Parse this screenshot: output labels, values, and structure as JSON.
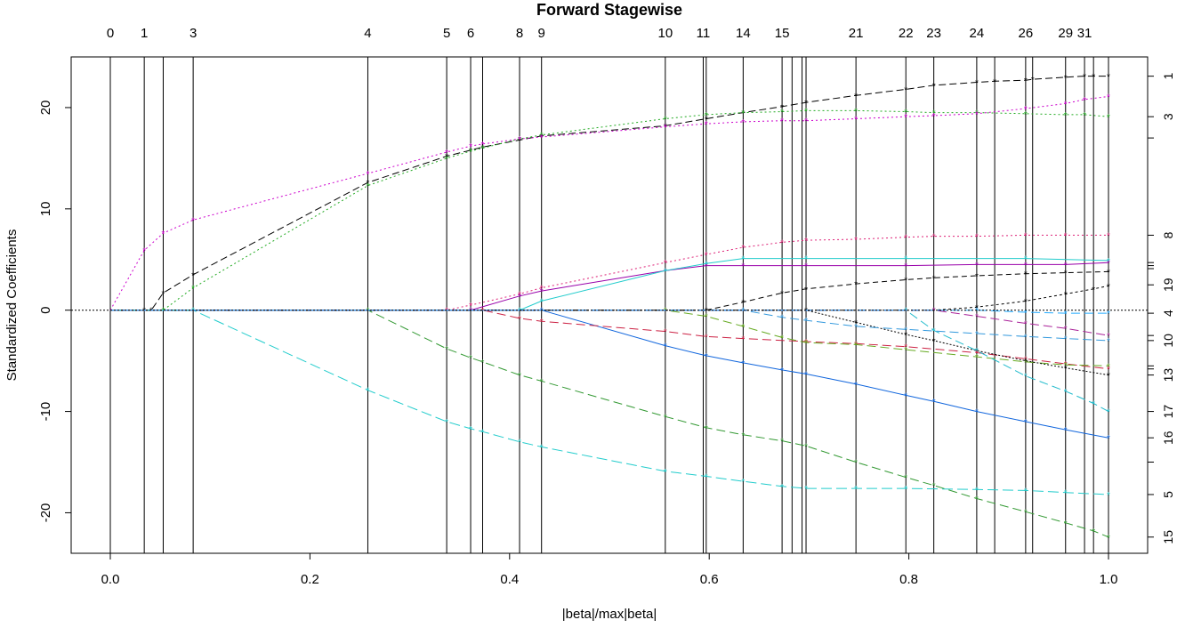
{
  "chart_data": {
    "type": "line",
    "title": "Forward Stagewise",
    "xlabel": "|beta|/max|beta|",
    "ylabel": "Standardized Coefficients",
    "xlim": [
      0.0,
      1.0
    ],
    "ylim": [
      -24,
      25
    ],
    "x_ticks": [
      0.0,
      0.2,
      0.4,
      0.6,
      0.8,
      1.0
    ],
    "x_tick_labels": [
      "0.0",
      "0.2",
      "0.4",
      "0.6",
      "0.8",
      "1.0"
    ],
    "y_ticks": [
      -20,
      -10,
      0,
      10,
      20
    ],
    "y_tick_labels": [
      "-20",
      "-10",
      "0",
      "10",
      "20"
    ],
    "grid": false,
    "legend": "none",
    "step_lines": [
      {
        "x": 0.0,
        "label": "0"
      },
      {
        "x": 0.034,
        "label": "1"
      },
      {
        "x": 0.053,
        "label": ""
      },
      {
        "x": 0.083,
        "label": "3"
      },
      {
        "x": 0.258,
        "label": "4"
      },
      {
        "x": 0.337,
        "label": "5"
      },
      {
        "x": 0.361,
        "label": "6"
      },
      {
        "x": 0.373,
        "label": ""
      },
      {
        "x": 0.41,
        "label": "8"
      },
      {
        "x": 0.432,
        "label": "9"
      },
      {
        "x": 0.556,
        "label": "10"
      },
      {
        "x": 0.594,
        "label": "11"
      },
      {
        "x": 0.597,
        "label": ""
      },
      {
        "x": 0.634,
        "label": "14"
      },
      {
        "x": 0.673,
        "label": "15"
      },
      {
        "x": 0.683,
        "label": ""
      },
      {
        "x": 0.693,
        "label": ""
      },
      {
        "x": 0.697,
        "label": ""
      },
      {
        "x": 0.747,
        "label": "21"
      },
      {
        "x": 0.797,
        "label": "22"
      },
      {
        "x": 0.825,
        "label": "23"
      },
      {
        "x": 0.868,
        "label": "24"
      },
      {
        "x": 0.886,
        "label": ""
      },
      {
        "x": 0.917,
        "label": "26"
      },
      {
        "x": 0.924,
        "label": ""
      },
      {
        "x": 0.957,
        "label": "29"
      },
      {
        "x": 0.976,
        "label": "31"
      },
      {
        "x": 0.985,
        "label": ""
      },
      {
        "x": 1.0,
        "label": ""
      }
    ],
    "right_labels": [
      {
        "y": 23.1,
        "label": "1"
      },
      {
        "y": 19.1,
        "label": "3"
      },
      {
        "y": 7.4,
        "label": "8"
      },
      {
        "y": 2.5,
        "label": "19"
      },
      {
        "y": -0.3,
        "label": "4"
      },
      {
        "y": -3.0,
        "label": "10"
      },
      {
        "y": -6.4,
        "label": "13"
      },
      {
        "y": -10.0,
        "label": "17"
      },
      {
        "y": -12.6,
        "label": "16"
      },
      {
        "y": -18.2,
        "label": "5"
      },
      {
        "y": -22.4,
        "label": "15"
      }
    ],
    "right_ticks": [
      23.1,
      19.1,
      17.0,
      7.4,
      4.7,
      4.4,
      4.1,
      2.5,
      -0.3,
      -2.5,
      -3.0,
      -5.5,
      -5.8,
      -6.4,
      -10.0,
      -12.6,
      -15.0,
      -18.2,
      -22.4
    ],
    "series": [
      {
        "color": "#000000",
        "dash": "8,4",
        "points": [
          [
            0.0,
            0
          ],
          [
            0.034,
            0
          ],
          [
            0.041,
            0
          ],
          [
            0.053,
            1.7
          ],
          [
            0.083,
            3.5
          ],
          [
            0.258,
            12.6
          ],
          [
            0.337,
            15.2
          ],
          [
            0.361,
            15.8
          ],
          [
            0.373,
            16.1
          ],
          [
            0.41,
            16.8
          ],
          [
            0.432,
            17.2
          ],
          [
            0.556,
            18.2
          ],
          [
            0.597,
            18.9
          ],
          [
            0.634,
            19.5
          ],
          [
            0.673,
            20.1
          ],
          [
            0.697,
            20.5
          ],
          [
            0.747,
            21.2
          ],
          [
            0.797,
            21.8
          ],
          [
            0.825,
            22.2
          ],
          [
            0.868,
            22.5
          ],
          [
            0.886,
            22.6
          ],
          [
            0.917,
            22.7
          ],
          [
            0.924,
            22.8
          ],
          [
            0.957,
            23.0
          ],
          [
            0.976,
            23.1
          ],
          [
            0.985,
            23.1
          ],
          [
            1.0,
            23.1
          ]
        ]
      },
      {
        "color": "#22aa22",
        "dash": "2,3",
        "points": [
          [
            0.0,
            0
          ],
          [
            0.053,
            0
          ],
          [
            0.083,
            2.2
          ],
          [
            0.258,
            12.3
          ],
          [
            0.337,
            15.0
          ],
          [
            0.361,
            15.7
          ],
          [
            0.373,
            16.0
          ],
          [
            0.41,
            16.9
          ],
          [
            0.432,
            17.3
          ],
          [
            0.556,
            18.9
          ],
          [
            0.597,
            19.3
          ],
          [
            0.634,
            19.5
          ],
          [
            0.673,
            19.6
          ],
          [
            0.697,
            19.7
          ],
          [
            0.747,
            19.7
          ],
          [
            0.797,
            19.6
          ],
          [
            0.825,
            19.5
          ],
          [
            0.868,
            19.5
          ],
          [
            0.917,
            19.4
          ],
          [
            0.957,
            19.3
          ],
          [
            0.976,
            19.3
          ],
          [
            1.0,
            19.1
          ]
        ]
      },
      {
        "color": "#cc00cc",
        "dash": "2,3",
        "points": [
          [
            0.0,
            0
          ],
          [
            0.034,
            5.9
          ],
          [
            0.053,
            7.6
          ],
          [
            0.083,
            8.9
          ],
          [
            0.258,
            13.5
          ],
          [
            0.337,
            15.6
          ],
          [
            0.361,
            16.2
          ],
          [
            0.373,
            16.4
          ],
          [
            0.41,
            16.9
          ],
          [
            0.432,
            17.1
          ],
          [
            0.556,
            18.1
          ],
          [
            0.597,
            18.4
          ],
          [
            0.634,
            18.6
          ],
          [
            0.673,
            18.7
          ],
          [
            0.697,
            18.7
          ],
          [
            0.747,
            18.9
          ],
          [
            0.797,
            19.1
          ],
          [
            0.825,
            19.2
          ],
          [
            0.868,
            19.4
          ],
          [
            0.917,
            19.9
          ],
          [
            0.957,
            20.4
          ],
          [
            0.976,
            20.8
          ],
          [
            1.0,
            21.1
          ]
        ]
      },
      {
        "color": "#dd2277",
        "dash": "2,3",
        "points": [
          [
            0.0,
            0
          ],
          [
            0.337,
            0
          ],
          [
            0.361,
            0.5
          ],
          [
            0.41,
            1.6
          ],
          [
            0.432,
            2.2
          ],
          [
            0.556,
            4.7
          ],
          [
            0.597,
            5.5
          ],
          [
            0.634,
            6.2
          ],
          [
            0.673,
            6.7
          ],
          [
            0.697,
            6.9
          ],
          [
            0.747,
            7.0
          ],
          [
            0.797,
            7.2
          ],
          [
            0.825,
            7.3
          ],
          [
            0.868,
            7.3
          ],
          [
            0.917,
            7.4
          ],
          [
            0.957,
            7.4
          ],
          [
            1.0,
            7.4
          ]
        ]
      },
      {
        "color": "#9900aa",
        "dash": "none",
        "points": [
          [
            0.0,
            0
          ],
          [
            0.361,
            0
          ],
          [
            0.41,
            1.4
          ],
          [
            0.432,
            1.9
          ],
          [
            0.556,
            3.9
          ],
          [
            0.597,
            4.4
          ],
          [
            0.634,
            4.4
          ],
          [
            0.697,
            4.4
          ],
          [
            0.797,
            4.4
          ],
          [
            0.868,
            4.5
          ],
          [
            0.917,
            4.5
          ],
          [
            0.957,
            4.5
          ],
          [
            1.0,
            4.7
          ]
        ]
      },
      {
        "color": "#22cccc",
        "dash": "none",
        "points": [
          [
            0.0,
            0
          ],
          [
            0.41,
            0
          ],
          [
            0.432,
            0.9
          ],
          [
            0.556,
            3.9
          ],
          [
            0.597,
            4.6
          ],
          [
            0.634,
            5.1
          ],
          [
            0.697,
            5.1
          ],
          [
            0.797,
            5.1
          ],
          [
            0.917,
            5.1
          ],
          [
            1.0,
            4.9
          ]
        ]
      },
      {
        "color": "#000000",
        "dash": "6,4",
        "points": [
          [
            0.0,
            0
          ],
          [
            0.597,
            0
          ],
          [
            0.634,
            0.8
          ],
          [
            0.673,
            1.7
          ],
          [
            0.697,
            2.1
          ],
          [
            0.747,
            2.6
          ],
          [
            0.797,
            3.0
          ],
          [
            0.825,
            3.2
          ],
          [
            0.868,
            3.4
          ],
          [
            0.917,
            3.6
          ],
          [
            0.957,
            3.7
          ],
          [
            1.0,
            3.8
          ]
        ]
      },
      {
        "color": "#000000",
        "dash": "3,3",
        "points": [
          [
            0.0,
            0
          ],
          [
            0.825,
            0
          ],
          [
            0.868,
            0.3
          ],
          [
            0.917,
            0.9
          ],
          [
            0.957,
            1.6
          ],
          [
            0.985,
            2.1
          ],
          [
            1.0,
            2.4
          ]
        ]
      },
      {
        "color": "#1166dd",
        "dash": "none",
        "points": [
          [
            0.0,
            0
          ],
          [
            0.432,
            0
          ],
          [
            0.556,
            -3.5
          ],
          [
            0.597,
            -4.5
          ],
          [
            0.634,
            -5.2
          ],
          [
            0.673,
            -5.9
          ],
          [
            0.697,
            -6.3
          ],
          [
            0.747,
            -7.3
          ],
          [
            0.797,
            -8.4
          ],
          [
            0.825,
            -9.0
          ],
          [
            0.868,
            -10.0
          ],
          [
            0.917,
            -11.0
          ],
          [
            0.957,
            -11.8
          ],
          [
            1.0,
            -12.6
          ]
        ]
      },
      {
        "color": "#22cccc",
        "dash": "12,5",
        "points": [
          [
            0.0,
            0
          ],
          [
            0.083,
            0
          ],
          [
            0.258,
            -7.9
          ],
          [
            0.337,
            -11.0
          ],
          [
            0.361,
            -11.7
          ],
          [
            0.373,
            -12.0
          ],
          [
            0.41,
            -13.0
          ],
          [
            0.432,
            -13.5
          ],
          [
            0.556,
            -15.9
          ],
          [
            0.597,
            -16.4
          ],
          [
            0.634,
            -16.9
          ],
          [
            0.673,
            -17.4
          ],
          [
            0.697,
            -17.6
          ],
          [
            0.747,
            -17.6
          ],
          [
            0.797,
            -17.6
          ],
          [
            0.868,
            -17.7
          ],
          [
            0.917,
            -17.8
          ],
          [
            0.957,
            -18.0
          ],
          [
            1.0,
            -18.2
          ]
        ]
      },
      {
        "color": "#339933",
        "dash": "10,5",
        "points": [
          [
            0.0,
            0
          ],
          [
            0.258,
            0
          ],
          [
            0.337,
            -3.8
          ],
          [
            0.361,
            -4.7
          ],
          [
            0.373,
            -5.1
          ],
          [
            0.41,
            -6.4
          ],
          [
            0.432,
            -7.0
          ],
          [
            0.556,
            -10.5
          ],
          [
            0.597,
            -11.6
          ],
          [
            0.634,
            -12.3
          ],
          [
            0.673,
            -12.9
          ],
          [
            0.697,
            -13.4
          ],
          [
            0.747,
            -15.0
          ],
          [
            0.797,
            -16.5
          ],
          [
            0.825,
            -17.3
          ],
          [
            0.868,
            -18.6
          ],
          [
            0.917,
            -19.9
          ],
          [
            0.957,
            -21.0
          ],
          [
            0.985,
            -21.8
          ],
          [
            1.0,
            -22.4
          ]
        ]
      },
      {
        "color": "#cc2244",
        "dash": "10,5",
        "points": [
          [
            0.0,
            0
          ],
          [
            0.373,
            0
          ],
          [
            0.41,
            -0.8
          ],
          [
            0.432,
            -1.1
          ],
          [
            0.556,
            -2.1
          ],
          [
            0.597,
            -2.6
          ],
          [
            0.634,
            -2.8
          ],
          [
            0.697,
            -3.1
          ],
          [
            0.747,
            -3.3
          ],
          [
            0.797,
            -3.6
          ],
          [
            0.868,
            -4.2
          ],
          [
            0.917,
            -4.8
          ],
          [
            0.957,
            -5.3
          ],
          [
            1.0,
            -5.8
          ]
        ]
      },
      {
        "color": "#66aa22",
        "dash": "10,5",
        "points": [
          [
            0.0,
            0
          ],
          [
            0.556,
            0
          ],
          [
            0.597,
            -0.6
          ],
          [
            0.634,
            -1.6
          ],
          [
            0.673,
            -2.7
          ],
          [
            0.697,
            -3.2
          ],
          [
            0.747,
            -3.4
          ],
          [
            0.797,
            -3.9
          ],
          [
            0.868,
            -4.6
          ],
          [
            0.917,
            -5.1
          ],
          [
            0.957,
            -5.4
          ],
          [
            1.0,
            -5.5
          ]
        ]
      },
      {
        "color": "#000000",
        "dash": "2,2",
        "points": [
          [
            0.0,
            0
          ],
          [
            0.697,
            0
          ],
          [
            0.747,
            -1.2
          ],
          [
            0.797,
            -2.4
          ],
          [
            0.825,
            -3.0
          ],
          [
            0.868,
            -4.0
          ],
          [
            0.917,
            -5.0
          ],
          [
            0.957,
            -5.7
          ],
          [
            1.0,
            -6.4
          ]
        ]
      },
      {
        "color": "#22bbcc",
        "dash": "10,5",
        "points": [
          [
            0.0,
            0
          ],
          [
            0.797,
            0
          ],
          [
            0.825,
            -2.0
          ],
          [
            0.868,
            -4.0
          ],
          [
            0.917,
            -6.5
          ],
          [
            0.957,
            -8.0
          ],
          [
            0.985,
            -9.2
          ],
          [
            1.0,
            -10.0
          ]
        ]
      },
      {
        "color": "#3399dd",
        "dash": "10,5",
        "points": [
          [
            0.0,
            0
          ],
          [
            0.634,
            0
          ],
          [
            0.673,
            -0.7
          ],
          [
            0.697,
            -1.0
          ],
          [
            0.747,
            -1.6
          ],
          [
            0.797,
            -1.9
          ],
          [
            0.868,
            -2.3
          ],
          [
            0.917,
            -2.6
          ],
          [
            0.957,
            -2.8
          ],
          [
            1.0,
            -3.0
          ]
        ]
      },
      {
        "color": "#aa2299",
        "dash": "10,5",
        "points": [
          [
            0.0,
            0
          ],
          [
            0.825,
            0
          ],
          [
            0.868,
            -0.6
          ],
          [
            0.917,
            -1.3
          ],
          [
            0.957,
            -1.8
          ],
          [
            1.0,
            -2.5
          ]
        ]
      },
      {
        "color": "#22aaff",
        "dash": "10,5",
        "points": [
          [
            0.0,
            0
          ],
          [
            0.868,
            0
          ],
          [
            0.917,
            -0.2
          ],
          [
            0.957,
            -0.3
          ],
          [
            1.0,
            -0.3
          ]
        ]
      }
    ]
  }
}
